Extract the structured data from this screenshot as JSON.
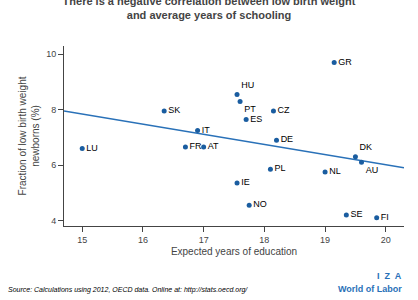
{
  "chart_data": {
    "type": "scatter",
    "title": "There is a negative correlation between low birth weight\nand average years of schooling",
    "xlabel": "Expected years of education",
    "ylabel": "Fraction of low birth weight\nnewborns (%)",
    "xlim": [
      14.7,
      20.3
    ],
    "ylim": [
      3.8,
      10.3
    ],
    "xticks": [
      15,
      16,
      17,
      18,
      19,
      20
    ],
    "yticks": [
      4,
      6,
      8,
      10
    ],
    "grid": false,
    "series": [
      {
        "type": "line",
        "color": "#2971b8",
        "x": [
          14.7,
          20.3
        ],
        "values": [
          7.95,
          5.9
        ]
      },
      {
        "type": "scatter",
        "color": "#1a5da0",
        "x": [
          15.0,
          16.35,
          16.7,
          16.9,
          17.0,
          17.55,
          17.6,
          17.7,
          17.55,
          17.75,
          18.15,
          18.2,
          18.1,
          19.0,
          19.15,
          19.35,
          19.5,
          19.6,
          19.85
        ],
        "values": [
          6.6,
          7.95,
          6.65,
          7.25,
          6.65,
          8.55,
          8.3,
          7.65,
          5.35,
          4.55,
          7.95,
          6.9,
          5.85,
          5.75,
          9.7,
          4.2,
          6.3,
          6.1,
          4.1
        ],
        "labels": [
          "LU",
          "SK",
          "FR",
          "IT",
          "AT",
          "HU",
          "PT",
          "ES",
          "IE",
          "NO",
          "CZ",
          "DE",
          "PL",
          "NL",
          "GR",
          "SE",
          "DK",
          "AU",
          "FI"
        ]
      }
    ],
    "annotations": [
      "Source: Calculations using 2012, OECD data. Online at: http://stats.oecd.org/",
      "I  Z  A",
      "World of Labor"
    ]
  }
}
